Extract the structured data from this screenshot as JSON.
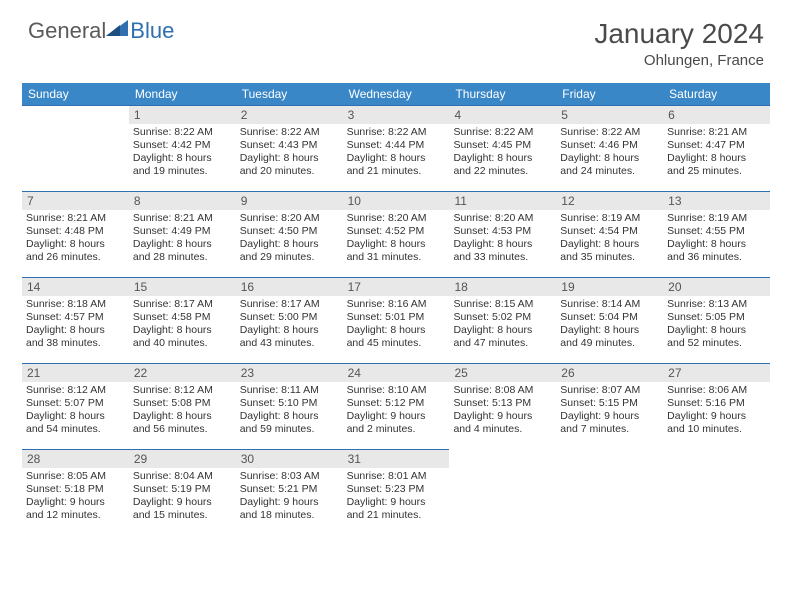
{
  "brand": {
    "general": "General",
    "blue": "Blue"
  },
  "title": "January 2024",
  "location": "Ohlungen, France",
  "colors": {
    "header_bg": "#3a87c8",
    "header_text": "#ffffff",
    "daynum_bg": "#e8e8e8",
    "border": "#2f6fb0",
    "logo_general": "#5a5a5a",
    "logo_blue": "#2f6fb0",
    "text": "#333333"
  },
  "day_headers": [
    "Sunday",
    "Monday",
    "Tuesday",
    "Wednesday",
    "Thursday",
    "Friday",
    "Saturday"
  ],
  "weeks": [
    [
      null,
      {
        "n": "1",
        "sr": "8:22 AM",
        "ss": "4:42 PM",
        "dl1": "Daylight: 8 hours",
        "dl2": "and 19 minutes."
      },
      {
        "n": "2",
        "sr": "8:22 AM",
        "ss": "4:43 PM",
        "dl1": "Daylight: 8 hours",
        "dl2": "and 20 minutes."
      },
      {
        "n": "3",
        "sr": "8:22 AM",
        "ss": "4:44 PM",
        "dl1": "Daylight: 8 hours",
        "dl2": "and 21 minutes."
      },
      {
        "n": "4",
        "sr": "8:22 AM",
        "ss": "4:45 PM",
        "dl1": "Daylight: 8 hours",
        "dl2": "and 22 minutes."
      },
      {
        "n": "5",
        "sr": "8:22 AM",
        "ss": "4:46 PM",
        "dl1": "Daylight: 8 hours",
        "dl2": "and 24 minutes."
      },
      {
        "n": "6",
        "sr": "8:21 AM",
        "ss": "4:47 PM",
        "dl1": "Daylight: 8 hours",
        "dl2": "and 25 minutes."
      }
    ],
    [
      {
        "n": "7",
        "sr": "8:21 AM",
        "ss": "4:48 PM",
        "dl1": "Daylight: 8 hours",
        "dl2": "and 26 minutes."
      },
      {
        "n": "8",
        "sr": "8:21 AM",
        "ss": "4:49 PM",
        "dl1": "Daylight: 8 hours",
        "dl2": "and 28 minutes."
      },
      {
        "n": "9",
        "sr": "8:20 AM",
        "ss": "4:50 PM",
        "dl1": "Daylight: 8 hours",
        "dl2": "and 29 minutes."
      },
      {
        "n": "10",
        "sr": "8:20 AM",
        "ss": "4:52 PM",
        "dl1": "Daylight: 8 hours",
        "dl2": "and 31 minutes."
      },
      {
        "n": "11",
        "sr": "8:20 AM",
        "ss": "4:53 PM",
        "dl1": "Daylight: 8 hours",
        "dl2": "and 33 minutes."
      },
      {
        "n": "12",
        "sr": "8:19 AM",
        "ss": "4:54 PM",
        "dl1": "Daylight: 8 hours",
        "dl2": "and 35 minutes."
      },
      {
        "n": "13",
        "sr": "8:19 AM",
        "ss": "4:55 PM",
        "dl1": "Daylight: 8 hours",
        "dl2": "and 36 minutes."
      }
    ],
    [
      {
        "n": "14",
        "sr": "8:18 AM",
        "ss": "4:57 PM",
        "dl1": "Daylight: 8 hours",
        "dl2": "and 38 minutes."
      },
      {
        "n": "15",
        "sr": "8:17 AM",
        "ss": "4:58 PM",
        "dl1": "Daylight: 8 hours",
        "dl2": "and 40 minutes."
      },
      {
        "n": "16",
        "sr": "8:17 AM",
        "ss": "5:00 PM",
        "dl1": "Daylight: 8 hours",
        "dl2": "and 43 minutes."
      },
      {
        "n": "17",
        "sr": "8:16 AM",
        "ss": "5:01 PM",
        "dl1": "Daylight: 8 hours",
        "dl2": "and 45 minutes."
      },
      {
        "n": "18",
        "sr": "8:15 AM",
        "ss": "5:02 PM",
        "dl1": "Daylight: 8 hours",
        "dl2": "and 47 minutes."
      },
      {
        "n": "19",
        "sr": "8:14 AM",
        "ss": "5:04 PM",
        "dl1": "Daylight: 8 hours",
        "dl2": "and 49 minutes."
      },
      {
        "n": "20",
        "sr": "8:13 AM",
        "ss": "5:05 PM",
        "dl1": "Daylight: 8 hours",
        "dl2": "and 52 minutes."
      }
    ],
    [
      {
        "n": "21",
        "sr": "8:12 AM",
        "ss": "5:07 PM",
        "dl1": "Daylight: 8 hours",
        "dl2": "and 54 minutes."
      },
      {
        "n": "22",
        "sr": "8:12 AM",
        "ss": "5:08 PM",
        "dl1": "Daylight: 8 hours",
        "dl2": "and 56 minutes."
      },
      {
        "n": "23",
        "sr": "8:11 AM",
        "ss": "5:10 PM",
        "dl1": "Daylight: 8 hours",
        "dl2": "and 59 minutes."
      },
      {
        "n": "24",
        "sr": "8:10 AM",
        "ss": "5:12 PM",
        "dl1": "Daylight: 9 hours",
        "dl2": "and 2 minutes."
      },
      {
        "n": "25",
        "sr": "8:08 AM",
        "ss": "5:13 PM",
        "dl1": "Daylight: 9 hours",
        "dl2": "and 4 minutes."
      },
      {
        "n": "26",
        "sr": "8:07 AM",
        "ss": "5:15 PM",
        "dl1": "Daylight: 9 hours",
        "dl2": "and 7 minutes."
      },
      {
        "n": "27",
        "sr": "8:06 AM",
        "ss": "5:16 PM",
        "dl1": "Daylight: 9 hours",
        "dl2": "and 10 minutes."
      }
    ],
    [
      {
        "n": "28",
        "sr": "8:05 AM",
        "ss": "5:18 PM",
        "dl1": "Daylight: 9 hours",
        "dl2": "and 12 minutes."
      },
      {
        "n": "29",
        "sr": "8:04 AM",
        "ss": "5:19 PM",
        "dl1": "Daylight: 9 hours",
        "dl2": "and 15 minutes."
      },
      {
        "n": "30",
        "sr": "8:03 AM",
        "ss": "5:21 PM",
        "dl1": "Daylight: 9 hours",
        "dl2": "and 18 minutes."
      },
      {
        "n": "31",
        "sr": "8:01 AM",
        "ss": "5:23 PM",
        "dl1": "Daylight: 9 hours",
        "dl2": "and 21 minutes."
      },
      null,
      null,
      null
    ]
  ],
  "labels": {
    "sunrise_prefix": "Sunrise: ",
    "sunset_prefix": "Sunset: "
  }
}
